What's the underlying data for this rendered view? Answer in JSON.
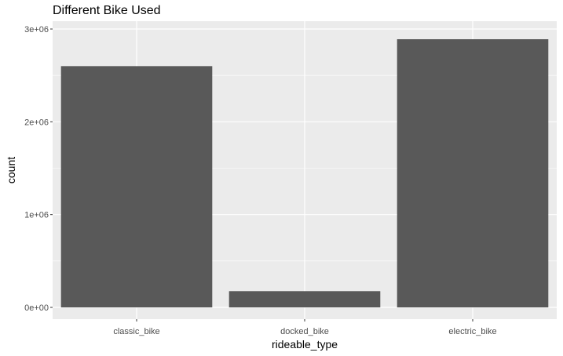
{
  "chart_data": {
    "type": "bar",
    "title": "Different Bike Used",
    "xlabel": "rideable_type",
    "ylabel": "count",
    "categories": [
      "classic_bike",
      "docked_bike",
      "electric_bike"
    ],
    "values": [
      2600000,
      175000,
      2890000
    ],
    "ylim": [
      0,
      3000000
    ],
    "yticks": [
      0,
      1000000,
      2000000,
      3000000
    ],
    "ytick_labels": [
      "0e+00",
      "1e+06",
      "2e+06",
      "3e+06"
    ],
    "grid": true,
    "colors": {
      "bar": "#595959",
      "panel": "#ebebeb",
      "grid": "#ffffff"
    }
  }
}
